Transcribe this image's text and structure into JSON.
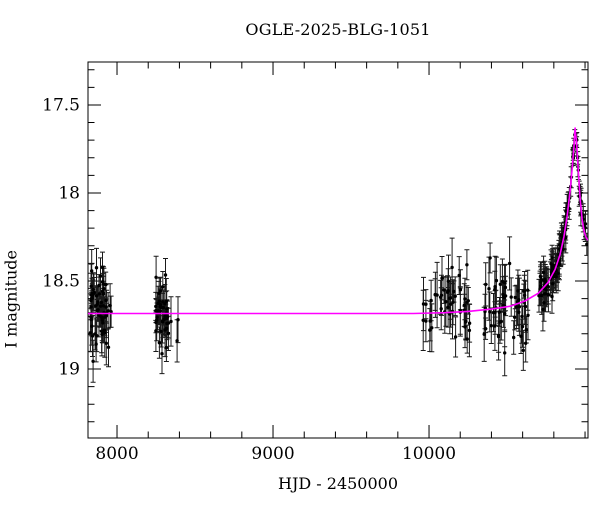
{
  "title": "OGLE-2025-BLG-1051",
  "colors": {
    "background": "#ffffff",
    "axis": "#000000",
    "tick_label": "#000000",
    "data_points": "#000000",
    "error_bars": "#1a1a1a",
    "model_curve": "#ff00ff"
  },
  "chart_data": {
    "type": "scatter",
    "title": "OGLE-2025-BLG-1051",
    "xlabel": "HJD - 2450000",
    "ylabel": "I magnitude",
    "xlim": [
      7814,
      11019
    ],
    "ylim_mag_top_to_bottom": [
      17.256,
      19.392
    ],
    "y_axis_inverted_magnitudes": true,
    "grid": false,
    "legend": "none",
    "x_major_ticks": [
      8000,
      9000,
      10000
    ],
    "x_major_tick_labels": [
      "8000",
      "9000",
      "10000"
    ],
    "x_minor_step": 200,
    "y_major_ticks": [
      17.5,
      18,
      18.5,
      19
    ],
    "y_major_tick_labels": [
      "17.5",
      "18",
      "18.5",
      "19"
    ],
    "y_minor_step": 0.1,
    "baseline_mag": 18.685,
    "peak": {
      "hjd": 10936,
      "mag": 17.63
    },
    "model_curve": [
      [
        7814,
        18.685
      ],
      [
        9900,
        18.685
      ],
      [
        10100,
        18.68
      ],
      [
        10250,
        18.673
      ],
      [
        10400,
        18.66
      ],
      [
        10520,
        18.643
      ],
      [
        10615,
        18.614
      ],
      [
        10700,
        18.57
      ],
      [
        10763,
        18.508
      ],
      [
        10808,
        18.434
      ],
      [
        10840,
        18.349
      ],
      [
        10865,
        18.246
      ],
      [
        10885,
        18.132
      ],
      [
        10904,
        17.99
      ],
      [
        10917,
        17.865
      ],
      [
        10929,
        17.734
      ],
      [
        10933,
        17.677
      ],
      [
        10936,
        17.631
      ],
      [
        10939,
        17.66
      ],
      [
        10945,
        17.705
      ],
      [
        10955,
        17.848
      ],
      [
        10968,
        18.024
      ],
      [
        10981,
        18.15
      ],
      [
        10994,
        18.218
      ],
      [
        11006,
        18.252
      ],
      [
        11019,
        18.269
      ]
    ],
    "observation_clusters": [
      {
        "name": "season-2017",
        "hjd_min": 7822,
        "hjd_max": 7966,
        "n": 65,
        "mode": "flat",
        "mag_mean": 18.68,
        "mag_sd": 0.115,
        "err_mean": 0.1,
        "err_sd": 0.025,
        "seed": 101
      },
      {
        "name": "season-2018",
        "hjd_min": 8246,
        "hjd_max": 8330,
        "n": 42,
        "mode": "flat",
        "mag_mean": 18.7,
        "mag_sd": 0.11,
        "err_mean": 0.1,
        "err_sd": 0.025,
        "seed": 202
      },
      {
        "name": "season-2024",
        "hjd_min": 9962,
        "hjd_max": 10263,
        "n": 48,
        "mode": "flat",
        "mag_mean": 18.66,
        "mag_sd": 0.105,
        "err_mean": 0.115,
        "err_sd": 0.03,
        "seed": 303
      },
      {
        "name": "season-2025-baseline",
        "hjd_min": 10350,
        "hjd_max": 10635,
        "n": 58,
        "mode": "flat",
        "mag_mean": 18.645,
        "mag_sd": 0.115,
        "err_mean": 0.12,
        "err_sd": 0.03,
        "seed": 404
      },
      {
        "name": "rise-to-peak",
        "hjd_min": 10705,
        "hjd_max": 10936,
        "n": 95,
        "mode": "curve",
        "seed": 505
      },
      {
        "name": "decline",
        "hjd_min": 10938,
        "hjd_max": 11012,
        "n": 20,
        "mode": "curve",
        "seed": 606
      }
    ],
    "isolated_points": [
      {
        "hjd": 8346,
        "mag": 18.73,
        "err": 0.14
      },
      {
        "hjd": 8391,
        "mag": 18.72,
        "err": 0.13
      },
      {
        "hjd": 8385,
        "mag": 18.84,
        "err": 0.12
      }
    ]
  }
}
